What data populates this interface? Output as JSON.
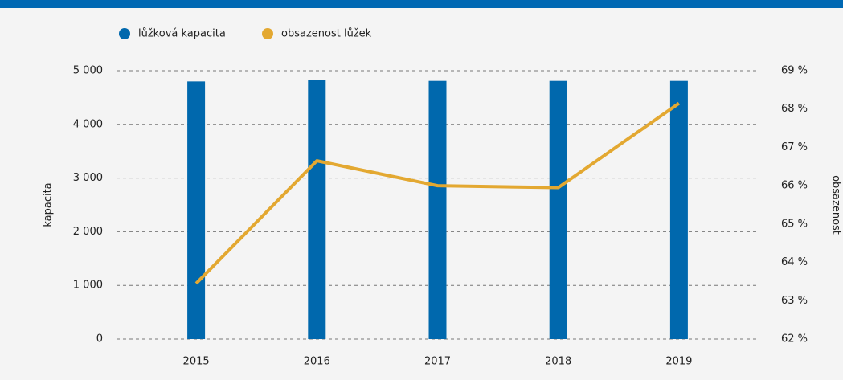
{
  "chart_data": {
    "type": "bar_line",
    "categories": [
      "2015",
      "2016",
      "2017",
      "2018",
      "2019"
    ],
    "series": [
      {
        "name": "lůžková kapacita",
        "color": "#0068ad",
        "type": "bar",
        "values": [
          4800,
          4830,
          4810,
          4810,
          4810
        ]
      },
      {
        "name": "obsazenost lůžek",
        "color": "#e3a831",
        "type": "line",
        "axis": "y2",
        "values": [
          63.45,
          66.65,
          66.0,
          65.95,
          68.15
        ]
      }
    ],
    "y_label": "kapacita",
    "y2_label": "obsazenost",
    "ylim": [
      0,
      5000
    ],
    "yticks": [
      0,
      {
        "value": 1000,
        "label": "1 000"
      },
      {
        "value": 2000,
        "label": "2 000"
      },
      {
        "value": 3000,
        "label": "3 000"
      },
      {
        "value": 4000,
        "label": "4 000"
      },
      {
        "value": 5000,
        "label": "5 000"
      }
    ],
    "y2lim": [
      62,
      69
    ],
    "y2ticks": [
      {
        "value": 62,
        "label": "62 %"
      },
      {
        "value": 63,
        "label": "63 %"
      },
      {
        "value": 64,
        "label": "64 %"
      },
      {
        "value": 65,
        "label": "65 %"
      },
      {
        "value": 66,
        "label": "66 %"
      },
      {
        "value": 67,
        "label": "67 %"
      },
      {
        "value": 68,
        "label": "68 %"
      },
      {
        "value": 69,
        "label": "69 %"
      }
    ],
    "grid": true
  }
}
